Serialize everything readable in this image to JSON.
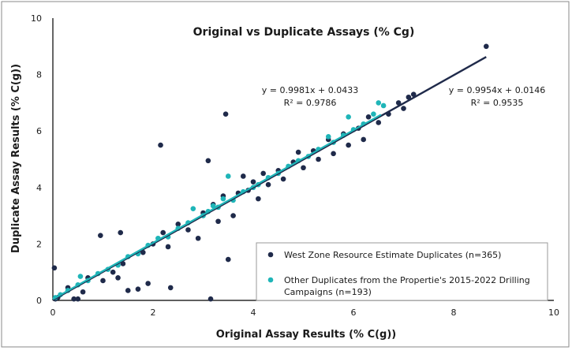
{
  "chart_data": {
    "type": "scatter",
    "title": "Original vs Duplicate Assays (% Cg)",
    "xlabel": "Original Assay Results (% C(g))",
    "ylabel": "Duplicate Assay Results (% C(g))",
    "xlim": [
      0,
      10
    ],
    "ylim": [
      0,
      10
    ],
    "xticks": [
      0,
      2,
      4,
      6,
      8,
      10
    ],
    "yticks": [
      0,
      2,
      4,
      6,
      8,
      10
    ],
    "grid": false,
    "legend_position": "bottom-right",
    "colors": {
      "west": "#1f2a4a",
      "other": "#1fb5b8",
      "axis": "#000000",
      "frame": "#555555"
    },
    "series": [
      {
        "name": "West Zone Resource Estimate Duplicates (n=365)",
        "color": "#1f2a4a",
        "points": [
          [
            0.03,
            1.15
          ],
          [
            0.05,
            0.05
          ],
          [
            0.1,
            0.1
          ],
          [
            0.5,
            0.05
          ],
          [
            0.42,
            0.05
          ],
          [
            0.3,
            0.45
          ],
          [
            0.6,
            0.3
          ],
          [
            0.7,
            0.8
          ],
          [
            0.95,
            2.3
          ],
          [
            1.0,
            0.7
          ],
          [
            1.2,
            1.0
          ],
          [
            1.3,
            0.8
          ],
          [
            1.4,
            1.3
          ],
          [
            1.5,
            0.35
          ],
          [
            1.35,
            2.4
          ],
          [
            1.7,
            0.4
          ],
          [
            1.8,
            1.7
          ],
          [
            1.9,
            0.6
          ],
          [
            2.0,
            2.0
          ],
          [
            2.15,
            5.5
          ],
          [
            2.2,
            2.4
          ],
          [
            2.3,
            1.9
          ],
          [
            2.35,
            0.45
          ],
          [
            2.5,
            2.7
          ],
          [
            2.7,
            2.5
          ],
          [
            2.9,
            2.2
          ],
          [
            3.0,
            3.1
          ],
          [
            3.1,
            4.95
          ],
          [
            3.15,
            0.05
          ],
          [
            3.2,
            3.4
          ],
          [
            3.3,
            2.8
          ],
          [
            3.4,
            3.7
          ],
          [
            3.45,
            6.6
          ],
          [
            3.5,
            1.45
          ],
          [
            3.6,
            3.0
          ],
          [
            3.7,
            3.8
          ],
          [
            3.8,
            4.4
          ],
          [
            3.9,
            3.9
          ],
          [
            4.0,
            4.2
          ],
          [
            4.1,
            3.6
          ],
          [
            4.2,
            4.5
          ],
          [
            4.3,
            4.1
          ],
          [
            4.5,
            4.6
          ],
          [
            4.6,
            4.3
          ],
          [
            4.8,
            4.9
          ],
          [
            4.9,
            5.25
          ],
          [
            5.0,
            4.7
          ],
          [
            5.2,
            5.3
          ],
          [
            5.3,
            5.0
          ],
          [
            5.5,
            5.7
          ],
          [
            5.6,
            5.2
          ],
          [
            5.8,
            5.9
          ],
          [
            5.9,
            5.5
          ],
          [
            6.1,
            6.1
          ],
          [
            6.2,
            5.7
          ],
          [
            6.3,
            6.5
          ],
          [
            6.5,
            6.3
          ],
          [
            6.7,
            6.6
          ],
          [
            6.9,
            7.0
          ],
          [
            7.0,
            6.8
          ],
          [
            7.1,
            7.2
          ],
          [
            7.2,
            7.3
          ],
          [
            8.65,
            9.0
          ]
        ]
      },
      {
        "name": "Other Duplicates from the Propertie's 2015-2022 Drilling Campaigns (n=193)",
        "color": "#1fb5b8",
        "points": [
          [
            0.05,
            0.1
          ],
          [
            0.15,
            0.2
          ],
          [
            0.3,
            0.35
          ],
          [
            0.5,
            0.55
          ],
          [
            0.55,
            0.85
          ],
          [
            0.7,
            0.7
          ],
          [
            0.9,
            0.95
          ],
          [
            1.1,
            1.1
          ],
          [
            1.3,
            1.25
          ],
          [
            1.5,
            1.55
          ],
          [
            1.7,
            1.65
          ],
          [
            1.9,
            1.95
          ],
          [
            2.1,
            2.2
          ],
          [
            2.3,
            2.25
          ],
          [
            2.5,
            2.55
          ],
          [
            2.7,
            2.75
          ],
          [
            2.8,
            3.25
          ],
          [
            3.0,
            3.0
          ],
          [
            3.1,
            3.15
          ],
          [
            3.2,
            3.35
          ],
          [
            3.3,
            3.3
          ],
          [
            3.4,
            3.6
          ],
          [
            3.5,
            4.4
          ],
          [
            3.6,
            3.55
          ],
          [
            3.8,
            3.85
          ],
          [
            4.0,
            4.0
          ],
          [
            4.1,
            4.1
          ],
          [
            4.3,
            4.35
          ],
          [
            4.5,
            4.5
          ],
          [
            4.7,
            4.75
          ],
          [
            4.9,
            4.95
          ],
          [
            5.1,
            5.1
          ],
          [
            5.3,
            5.35
          ],
          [
            5.5,
            5.8
          ],
          [
            5.6,
            5.6
          ],
          [
            5.8,
            5.85
          ],
          [
            5.9,
            6.5
          ],
          [
            6.0,
            6.05
          ],
          [
            6.2,
            6.25
          ],
          [
            6.4,
            6.6
          ],
          [
            6.5,
            7.0
          ],
          [
            6.6,
            6.9
          ]
        ]
      }
    ],
    "trendlines": [
      {
        "series": "West Zone Resource Estimate Duplicates (n=365)",
        "slope": 0.9954,
        "intercept": 0.0146,
        "x_range": [
          0,
          8.65
        ],
        "equation": "y = 0.9954x + 0.0146",
        "r2": "R² = 0.9535",
        "color": "#1f2a4a"
      },
      {
        "series": "Other Duplicates from the Propertie's 2015-2022 Drilling Campaigns (n=193)",
        "slope": 0.9981,
        "intercept": 0.0433,
        "x_range": [
          0,
          6.55
        ],
        "equation": "y = 0.9981x + 0.0433",
        "r2": "R² = 0.9786",
        "color": "#1fb5b8"
      }
    ],
    "legend": {
      "west_label": "West Zone Resource Estimate Duplicates (n=365)",
      "other_label_line1": "Other Duplicates from the Propertie's 2015-2022 Drilling",
      "other_label_line2": "Campaigns (n=193)"
    }
  }
}
